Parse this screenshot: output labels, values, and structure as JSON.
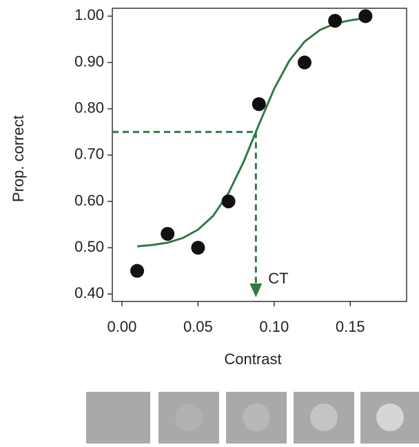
{
  "chart_data": {
    "type": "scatter",
    "x_label": "Contrast",
    "y_label": "Prop. correct",
    "xlim": [
      -0.0063,
      0.187
    ],
    "ylim": [
      0.384,
      1.017
    ],
    "xticks": [
      {
        "value": 0,
        "label": "0.00"
      },
      0.05,
      {
        "value": 0.1,
        "label": "0.10"
      },
      0.15
    ],
    "yticks": [
      {
        "value": 0.4,
        "label": "0.40"
      },
      {
        "value": 0.5,
        "label": "0.50"
      },
      {
        "value": 0.6,
        "label": "0.60"
      },
      {
        "value": 0.7,
        "label": "0.70"
      },
      {
        "value": 0.8,
        "label": "0.80"
      },
      {
        "value": 0.9,
        "label": "0.90"
      },
      {
        "value": 1,
        "label": "1.00"
      }
    ],
    "points": {
      "color": "#111111",
      "x": [
        0.01,
        0.03,
        0.05,
        0.07,
        0.09,
        0.12,
        0.14,
        0.16
      ],
      "values": [
        0.45,
        0.53,
        0.5,
        0.6,
        0.81,
        0.9,
        0.99,
        1.0
      ]
    },
    "fit": {
      "color": "#2f7a45",
      "x": [
        0.01,
        0.02,
        0.03,
        0.04,
        0.05,
        0.06,
        0.07,
        0.08,
        0.09,
        0.1,
        0.11,
        0.12,
        0.13,
        0.14,
        0.15,
        0.16
      ],
      "values": [
        0.503,
        0.506,
        0.511,
        0.521,
        0.539,
        0.569,
        0.618,
        0.686,
        0.766,
        0.843,
        0.904,
        0.945,
        0.97,
        0.984,
        0.991,
        0.996
      ]
    },
    "threshold": {
      "x": 0.088,
      "y": 0.75,
      "label": "CT"
    }
  }
}
